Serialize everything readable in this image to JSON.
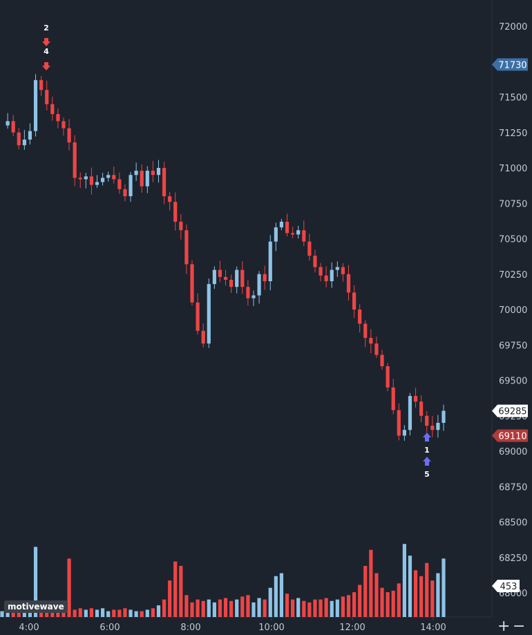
{
  "chart_data": {
    "type": "candlestick",
    "x_axis": {
      "ticks": [
        "4:00",
        "6:00",
        "8:00",
        "10:00",
        "12:00",
        "14:00"
      ]
    },
    "y_axis": {
      "ticks": [
        "72000",
        "71750",
        "71500",
        "71250",
        "71000",
        "70750",
        "70500",
        "70250",
        "70000",
        "69750",
        "69500",
        "69250",
        "69000",
        "68750",
        "68500",
        "68250",
        "68000"
      ],
      "range": [
        67900,
        72150
      ]
    },
    "price_tags": [
      {
        "label": "71730",
        "value": 71730,
        "color": "#3d6fa5"
      },
      {
        "label": "69285",
        "value": 69285,
        "color": "#ffffff"
      },
      {
        "label": "69110",
        "value": 69110,
        "color": "#b33a3a"
      }
    ],
    "volume_tag": {
      "label": "453"
    },
    "signals": [
      {
        "type": "sell",
        "labels": [
          "2",
          "4"
        ],
        "color": "#ee4545"
      },
      {
        "type": "buy",
        "labels": [
          "1",
          "5"
        ],
        "color": "#6b6ef5"
      }
    ],
    "colors": {
      "up": "#8ec3e6",
      "down": "#ee4545",
      "background": "#1c232d",
      "axis_text": "#c4cad3"
    },
    "close_path": [
      71300,
      71330,
      71250,
      71160,
      71200,
      71260,
      71620,
      71550,
      71450,
      71380,
      71330,
      71280,
      71180,
      70930,
      70920,
      70940,
      70880,
      70900,
      70930,
      70950,
      70920,
      70850,
      70800,
      70950,
      70980,
      70870,
      70980,
      70950,
      71000,
      70800,
      70760,
      70620,
      70560,
      70320,
      70050,
      69850,
      69760,
      70180,
      70280,
      70230,
      70210,
      70160,
      70280,
      70160,
      70080,
      70100,
      70250,
      70200,
      70480,
      70580,
      70620,
      70540,
      70530,
      70560,
      70480,
      70380,
      70300,
      70240,
      70200,
      70280,
      70300,
      70250,
      70120,
      70000,
      69900,
      69800,
      69760,
      69680,
      69600,
      69450,
      69290,
      69110,
      69150,
      69390,
      69350,
      69250,
      69180,
      69150,
      69200,
      69285
    ],
    "volume_path": [
      40,
      60,
      50,
      60,
      80,
      60,
      480,
      60,
      40,
      50,
      60,
      70,
      400,
      50,
      60,
      50,
      60,
      50,
      60,
      40,
      50,
      50,
      60,
      50,
      40,
      40,
      50,
      60,
      80,
      120,
      250,
      380,
      350,
      150,
      100,
      120,
      110,
      120,
      100,
      120,
      130,
      110,
      120,
      140,
      150,
      100,
      130,
      120,
      200,
      280,
      300,
      160,
      120,
      130,
      110,
      100,
      120,
      120,
      130,
      110,
      120,
      140,
      150,
      170,
      220,
      350,
      460,
      300,
      200,
      170,
      180,
      230,
      500,
      420,
      320,
      280,
      370,
      250,
      300,
      400
    ]
  },
  "toolbar": {
    "plus_label": "+",
    "minus_label": "−"
  },
  "watermark": {
    "label": "motivewave"
  }
}
